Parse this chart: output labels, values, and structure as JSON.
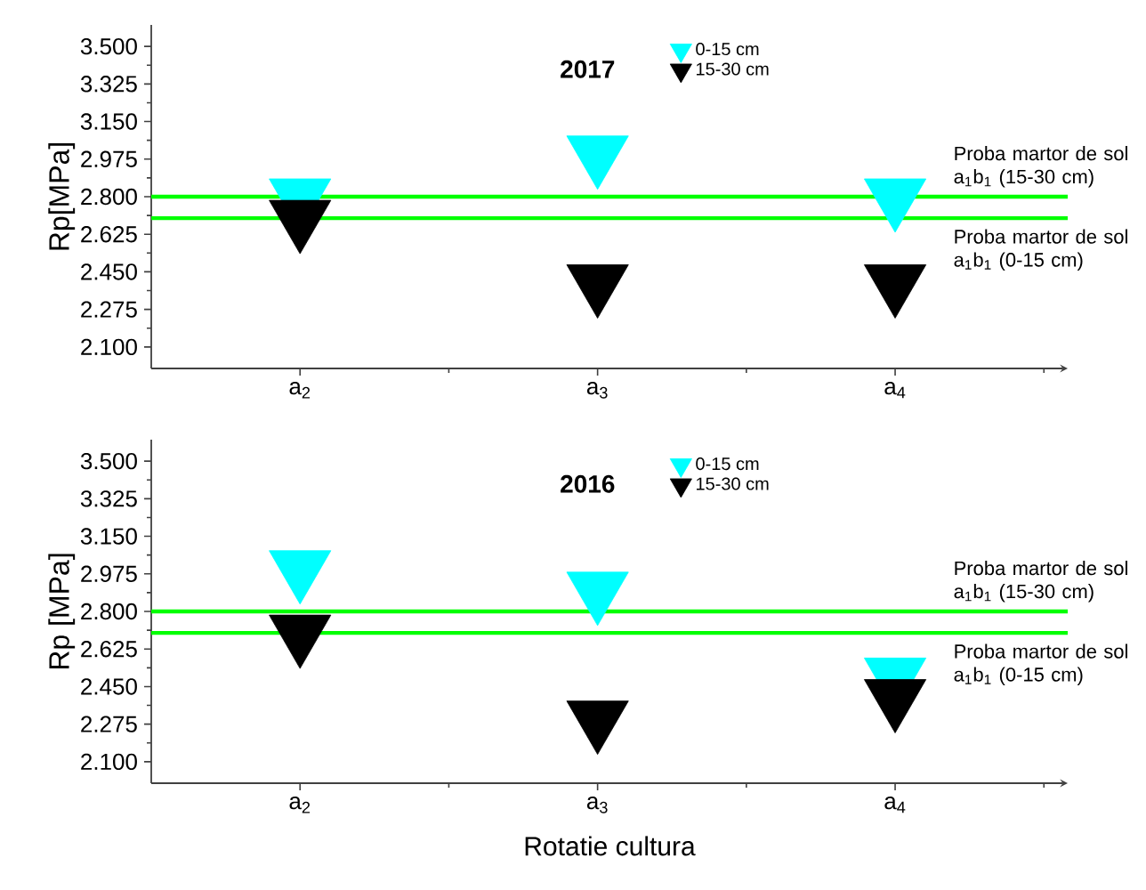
{
  "chart_data": [
    {
      "type": "scatter",
      "title": "2017",
      "ylabel": "Rp[MPa]",
      "categories": [
        "a$_{2}$",
        "a$_{3}$",
        "a$_{4}$"
      ],
      "marker": "triangle",
      "legend": "top",
      "series": [
        {
          "name": "0-15 cm",
          "color": "#00ffff",
          "values": [
            2.8,
            3.0,
            2.8
          ]
        },
        {
          "name": "15-30 cm",
          "color": "#000000",
          "values": [
            2.7,
            2.4,
            2.4
          ]
        }
      ],
      "ylim": [
        2.0,
        3.6
      ],
      "yticks": [
        {
          "value": 2.1,
          "label": "2.100"
        },
        {
          "value": 2.275,
          "label": "2.275"
        },
        {
          "value": 2.45,
          "label": "2.450"
        },
        {
          "value": 2.625,
          "label": "2.625"
        },
        {
          "value": 2.8,
          "label": "2.800"
        },
        {
          "value": 2.975,
          "label": "2.975"
        },
        {
          "value": 3.15,
          "label": "3.150"
        },
        {
          "value": 3.325,
          "label": "3.325"
        },
        {
          "value": 3.5,
          "label": "3.500"
        }
      ],
      "ref_lines": [
        {
          "axis": "y",
          "value": 2.8,
          "label": "Proba martor de sol a$_{1}$b$_{1}$ (15-30 cm)",
          "color": "#00ff00"
        },
        {
          "axis": "y",
          "value": 2.7,
          "label": "Proba martor de sol a$_{1}$b$_{1}$ (0-15 cm)",
          "color": "#00ff00"
        }
      ]
    },
    {
      "type": "scatter",
      "title": "2016",
      "ylabel": "Rp [MPa]",
      "xlabel": "Rotatie cultura",
      "categories": [
        "a$_{2}$",
        "a$_{3}$",
        "a$_{4}$"
      ],
      "marker": "triangle",
      "legend": "top",
      "series": [
        {
          "name": "0-15 cm",
          "color": "#00ffff",
          "values": [
            3.0,
            2.9,
            2.5
          ]
        },
        {
          "name": "15-30 cm",
          "color": "#000000",
          "values": [
            2.7,
            2.3,
            2.4
          ]
        }
      ],
      "ylim": [
        2.0,
        3.6
      ],
      "yticks": [
        {
          "value": 2.1,
          "label": "2.100"
        },
        {
          "value": 2.275,
          "label": "2.275"
        },
        {
          "value": 2.45,
          "label": "2.450"
        },
        {
          "value": 2.625,
          "label": "2.625"
        },
        {
          "value": 2.8,
          "label": "2.800"
        },
        {
          "value": 2.975,
          "label": "2.975"
        },
        {
          "value": 3.15,
          "label": "3.150"
        },
        {
          "value": 3.325,
          "label": "3.325"
        },
        {
          "value": 3.5,
          "label": "3.500"
        }
      ],
      "ref_lines": [
        {
          "axis": "y",
          "value": 2.8,
          "label": "Proba martor de sol a$_{1}$b$_{1}$ (15-30 cm)",
          "color": "#00ff00"
        },
        {
          "axis": "y",
          "value": 2.7,
          "label": "Proba martor de sol a$_{1}$b$_{1}$ (0-15 cm)",
          "color": "#00ff00"
        }
      ]
    }
  ]
}
